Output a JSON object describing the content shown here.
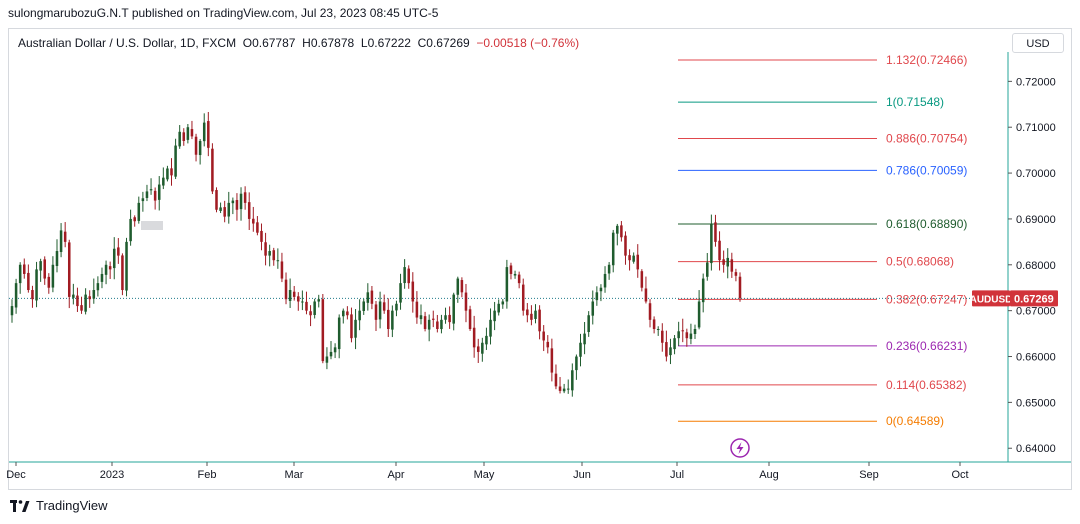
{
  "header": {
    "published": "sulongmarubozuG.N.T published on TradingView.com, Jul 23, 2023 08:45 UTC-5"
  },
  "legend": {
    "symbol": "Australian Dollar / U.S. Dollar, 1D, FXCM",
    "o_label": "O",
    "o": "0.67787",
    "h_label": "H",
    "h": "0.67878",
    "l_label": "L",
    "l": "0.67222",
    "c_label": "C",
    "c": "0.67269",
    "change": "−0.00518 (−0.76%)"
  },
  "currency_button": "USD",
  "footer": {
    "brand": "TradingView",
    "logo_icon": "tradingview-logo-icon"
  },
  "colors": {
    "up": "#1f5c2e",
    "down": "#a11b22",
    "axis": "#26a69a",
    "price_tag": "#d1333a"
  },
  "chart_data": {
    "type": "candlestick",
    "symbol": "AUDUSD",
    "last_price": "0.67269",
    "y_tick_labels": [
      "0.72000",
      "0.71000",
      "0.70000",
      "0.69000",
      "0.68000",
      "0.67000",
      "0.66000",
      "0.65000",
      "0.64000"
    ],
    "y_ticks": [
      0.72,
      0.71,
      0.7,
      0.69,
      0.68,
      0.67,
      0.66,
      0.65,
      0.64
    ],
    "ylim": [
      0.637,
      0.7264
    ],
    "x_tick_labels": [
      "Dec",
      "2023",
      "Feb",
      "Mar",
      "Apr",
      "May",
      "Jun",
      "Jul",
      "Aug",
      "Sep",
      "Oct"
    ],
    "fibonacci": [
      {
        "label": "1.132(0.72466)",
        "value": 0.72466,
        "color": "#e0474c"
      },
      {
        "label": "1(0.71548)",
        "value": 0.71548,
        "color": "#089981"
      },
      {
        "label": "0.886(0.70754)",
        "value": 0.70754,
        "color": "#e0474c"
      },
      {
        "label": "0.786(0.70059)",
        "value": 0.70059,
        "color": "#2962ff"
      },
      {
        "label": "0.618(0.68890)",
        "value": 0.6889,
        "color": "#1f5c2e"
      },
      {
        "label": "0.5(0.68068)",
        "value": 0.68068,
        "color": "#e0474c"
      },
      {
        "label": "0.382(0.67247)",
        "value": 0.67247,
        "color": "#e0474c"
      },
      {
        "label": "0.236(0.66231)",
        "value": 0.66231,
        "color": "#9c27b0"
      },
      {
        "label": "0.114(0.65382)",
        "value": 0.65382,
        "color": "#e0474c"
      },
      {
        "label": "0(0.64589)",
        "value": 0.64589,
        "color": "#f57c00"
      }
    ],
    "closes": [
      0.671,
      0.676,
      0.68,
      0.678,
      0.6745,
      0.6725,
      0.679,
      0.6808,
      0.677,
      0.675,
      0.68,
      0.683,
      0.6875,
      0.685,
      0.673,
      0.6735,
      0.671,
      0.67,
      0.6735,
      0.6725,
      0.6745,
      0.676,
      0.678,
      0.68,
      0.679,
      0.6835,
      0.682,
      0.6745,
      0.685,
      0.69,
      0.6895,
      0.6935,
      0.6945,
      0.696,
      0.6965,
      0.694,
      0.6975,
      0.699,
      0.701,
      0.6995,
      0.706,
      0.709,
      0.707,
      0.71,
      0.708,
      0.704,
      0.707,
      0.711,
      0.7055,
      0.696,
      0.692,
      0.6925,
      0.6905,
      0.6935,
      0.694,
      0.692,
      0.6955,
      0.6935,
      0.69,
      0.689,
      0.687,
      0.685,
      0.682,
      0.683,
      0.681,
      0.681,
      0.677,
      0.6725,
      0.6745,
      0.673,
      0.672,
      0.672,
      0.67,
      0.669,
      0.672,
      0.6725,
      0.659,
      0.66,
      0.661,
      0.662,
      0.6685,
      0.67,
      0.669,
      0.664,
      0.668,
      0.67,
      0.672,
      0.674,
      0.6715,
      0.668,
      0.672,
      0.67,
      0.666,
      0.67,
      0.6715,
      0.676,
      0.6795,
      0.676,
      0.672,
      0.6685,
      0.669,
      0.666,
      0.668,
      0.668,
      0.666,
      0.668,
      0.669,
      0.6675,
      0.6735,
      0.677,
      0.674,
      0.67,
      0.666,
      0.662,
      0.661,
      0.663,
      0.6645,
      0.668,
      0.67,
      0.6715,
      0.672,
      0.6795,
      0.678,
      0.678,
      0.676,
      0.67,
      0.669,
      0.668,
      0.67,
      0.6655,
      0.6635,
      0.662,
      0.6565,
      0.6535,
      0.6525,
      0.653,
      0.653,
      0.657,
      0.66,
      0.663,
      0.665,
      0.669,
      0.672,
      0.674,
      0.675,
      0.678,
      0.68,
      0.687,
      0.6885,
      0.686,
      0.682,
      0.681,
      0.682,
      0.679,
      0.675,
      0.672,
      0.668,
      0.666,
      0.666,
      0.663,
      0.66,
      0.662,
      0.664,
      0.6655,
      0.6655,
      0.664,
      0.665,
      0.666,
      0.672,
      0.677,
      0.6805,
      0.689,
      0.685,
      0.681,
      0.68,
      0.6815,
      0.6785,
      0.6776,
      0.6727
    ],
    "extra": "x-axis dates Dec 2022 – Oct 2023; candles end late Jul 2023"
  }
}
